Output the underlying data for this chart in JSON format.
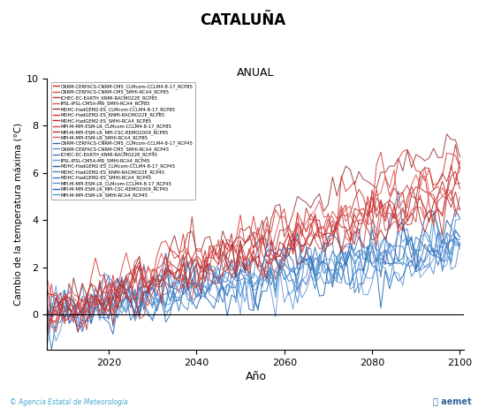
{
  "title": "CATALUÑA",
  "subtitle": "ANUAL",
  "xlabel": "Año",
  "ylabel": "Cambio de la temperatura máxima (°C)",
  "xlim": [
    2006,
    2101
  ],
  "ylim": [
    -1.5,
    10
  ],
  "yticks": [
    0,
    2,
    4,
    6,
    8,
    10
  ],
  "xticks": [
    2020,
    2040,
    2060,
    2080,
    2100
  ],
  "x_start": 2006,
  "x_end": 2100,
  "rcp85_color": "#CC3333",
  "rcp45_color": "#4488CC",
  "rcp85_color_light": "#E88880",
  "rcp45_color_light": "#88BBEE",
  "background_color": "#FFFFFF",
  "legend_rcp85": [
    "CNRM-CERFACS-CNRM-CM5_CLMcom-CCLM4-8-17_RCP85",
    "CNRM-CERFACS-CNRM-CM5_SMHI-RCA4_RCP85",
    "ICHEC-EC-EARTH_KNMI-RACMO22E_RCP85",
    "IPSL-IPSL-CM5A-MR_SMHI-RCA4_RCP85",
    "MOHC-HadGEM2-ES_CLMcom-CCLM4-8-17_RCP85",
    "MOHC-HadGEM2-ES_KNMI-RACMO22E_RCP85",
    "MOHC-HadGEM2-ES_SMHI-RCA4_RCP85",
    "MPI-M-MPI-ESM-LR_CLMcom-CCLM4-8-17_RCP85",
    "MPI-M-MPI-ESM-LR_MPI-CSC-REMO2009_RCP85",
    "MPI-M-MPI-ESM-LR_SMHI-RCA4_RCP85"
  ],
  "legend_rcp45": [
    "CNRM-CERFACS-CNRM-CM5_CLMcom-CCLM4-8-17_RCP45",
    "CNRM-CERFACS-CNRM-CM5_SMHI-RCA4_RCP45",
    "ICHEC-EC-EARTH_KNMI-RACMO22E_RCP45",
    "IPSL-IPSL-CM5A-MR_SMHI-RCA4_RCP45",
    "MOHC-HadGEM2-ES_CLMcom-CCLM4-8-17_RCP45",
    "MOHC-HadGEM2-ES_KNMI-RACMO22E_RCP45",
    "MOHC-HadGEM2-ES_SMHI-RCA4_RCP45",
    "MPI-M-MPI-ESM-LR_CLMcom-CCLM4-8-17_RCP45",
    "MPI-M-MPI-ESM-LR_MPI-CSC-REMO2009_RCP45",
    "MPI-M-MPI-ESM-LR_SMHI-RCA4_RCP45"
  ],
  "footer_left": "© Agencia Estatal de Meteorología",
  "footer_left_color": "#44AACC"
}
